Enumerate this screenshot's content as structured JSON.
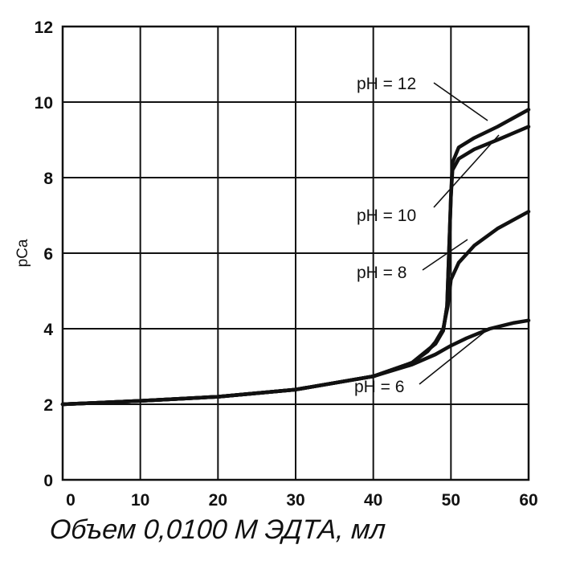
{
  "chart_data": {
    "type": "line",
    "xlabel": "Объем 0,0100 М ЭДТА, мл",
    "ylabel": "pCa",
    "xlim": [
      0,
      60
    ],
    "ylim": [
      0,
      12
    ],
    "x_ticks": [
      "0",
      "10",
      "20",
      "30",
      "40",
      "50",
      "60"
    ],
    "y_ticks": [
      "0",
      "2",
      "4",
      "6",
      "8",
      "10",
      "12"
    ],
    "grid": true,
    "series": [
      {
        "name": "pH = 12",
        "points": [
          [
            0,
            2.0
          ],
          [
            10,
            2.09
          ],
          [
            20,
            2.2
          ],
          [
            30,
            2.39
          ],
          [
            40,
            2.74
          ],
          [
            45,
            3.1
          ],
          [
            48,
            3.6
          ],
          [
            49,
            3.95
          ],
          [
            49.5,
            4.6
          ],
          [
            50,
            7.5
          ],
          [
            50.2,
            8.4
          ],
          [
            51,
            8.8
          ],
          [
            53,
            9.05
          ],
          [
            56,
            9.35
          ],
          [
            60,
            9.8
          ]
        ]
      },
      {
        "name": "pH = 10",
        "points": [
          [
            0,
            2.0
          ],
          [
            10,
            2.09
          ],
          [
            20,
            2.2
          ],
          [
            30,
            2.39
          ],
          [
            40,
            2.74
          ],
          [
            45,
            3.1
          ],
          [
            48,
            3.6
          ],
          [
            49,
            3.95
          ],
          [
            49.5,
            4.6
          ],
          [
            50,
            7.5
          ],
          [
            50.2,
            8.2
          ],
          [
            51,
            8.5
          ],
          [
            53,
            8.75
          ],
          [
            56,
            9.0
          ],
          [
            60,
            9.35
          ]
        ]
      },
      {
        "name": "pH = 8",
        "points": [
          [
            0,
            2.0
          ],
          [
            10,
            2.09
          ],
          [
            20,
            2.2
          ],
          [
            30,
            2.39
          ],
          [
            40,
            2.74
          ],
          [
            45,
            3.1
          ],
          [
            47,
            3.4
          ],
          [
            48,
            3.65
          ],
          [
            49,
            4.0
          ],
          [
            49.6,
            4.6
          ],
          [
            50,
            5.3
          ],
          [
            51,
            5.75
          ],
          [
            53,
            6.2
          ],
          [
            56,
            6.65
          ],
          [
            60,
            7.1
          ]
        ]
      },
      {
        "name": "pH = 6",
        "points": [
          [
            0,
            2.0
          ],
          [
            10,
            2.09
          ],
          [
            20,
            2.2
          ],
          [
            30,
            2.39
          ],
          [
            40,
            2.74
          ],
          [
            45,
            3.05
          ],
          [
            48,
            3.32
          ],
          [
            50,
            3.55
          ],
          [
            52,
            3.75
          ],
          [
            55,
            4.0
          ],
          [
            58,
            4.15
          ],
          [
            60,
            4.22
          ]
        ]
      }
    ],
    "annotations": [
      {
        "text": "pH = 12",
        "series": 0
      },
      {
        "text": "pH = 10",
        "series": 1
      },
      {
        "text": "pH = 8",
        "series": 2
      },
      {
        "text": "pH = 6",
        "series": 3
      }
    ]
  }
}
